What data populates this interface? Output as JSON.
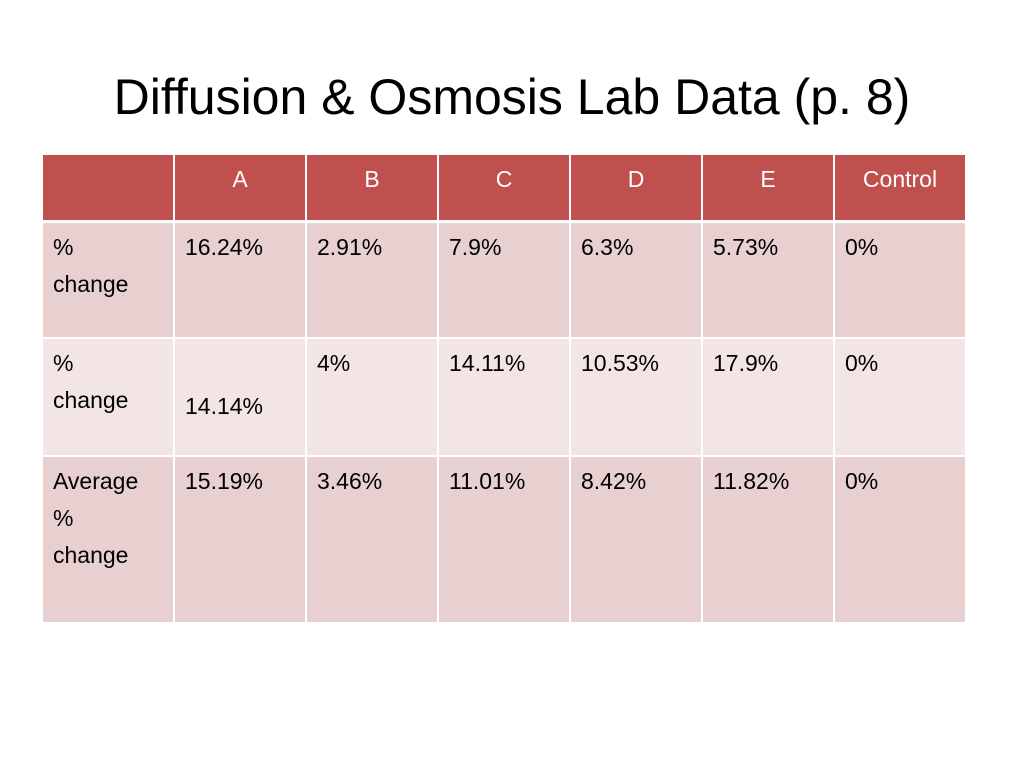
{
  "title": "Diffusion & Osmosis Lab Data (p. 8)",
  "table": {
    "columns": [
      "",
      "A",
      "B",
      "C",
      "D",
      "E",
      "Control"
    ],
    "rows": [
      {
        "label": "%\nchange",
        "cells": [
          "16.24%",
          "2.91%",
          "7.9%",
          "6.3%",
          "5.73%",
          "0%"
        ]
      },
      {
        "label": "%\nchange",
        "cells": [
          "14.14%",
          "4%",
          "14.11%",
          "10.53%",
          "17.9%",
          "0%"
        ]
      },
      {
        "label": "Average\n%\nchange",
        "cells": [
          "15.19%",
          "3.46%",
          "11.01%",
          "8.42%",
          "11.82%",
          "0%"
        ]
      }
    ]
  },
  "colors": {
    "header_bg": "#c0504d",
    "row_odd_bg": "#e8cfd0",
    "row_even_bg": "#f3e5e6"
  }
}
